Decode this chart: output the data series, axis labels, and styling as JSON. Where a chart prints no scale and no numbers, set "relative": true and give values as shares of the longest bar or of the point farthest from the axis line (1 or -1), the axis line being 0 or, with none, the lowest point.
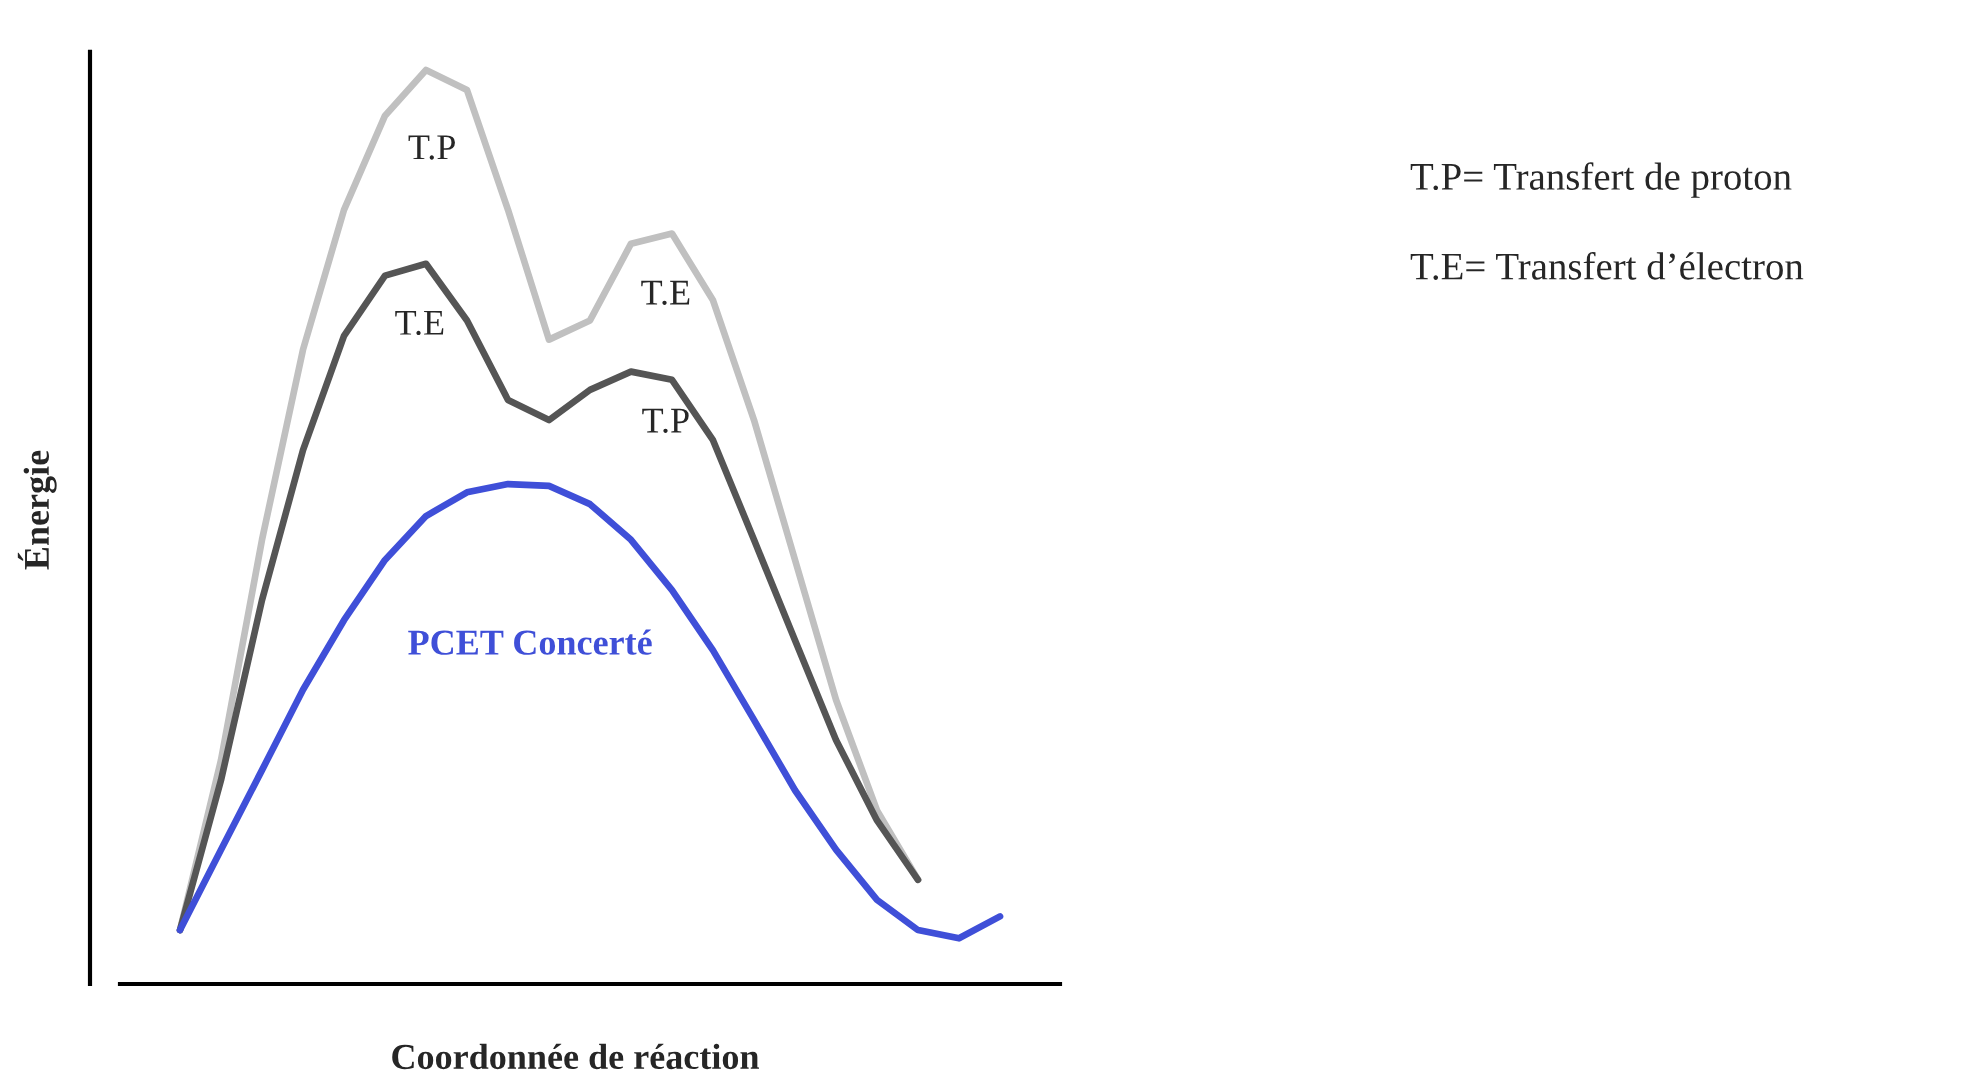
{
  "chart_data": {
    "type": "line",
    "relative": true,
    "xlabel": "Coordonnée de réaction",
    "ylabel": "Énergie",
    "categories": [
      null,
      null,
      null,
      null,
      null,
      null,
      null,
      null,
      null,
      null,
      null,
      null,
      null,
      null,
      null,
      null,
      null,
      null,
      null,
      null,
      null
    ],
    "series": [
      {
        "color": "#c0c0c0",
        "values": [
          0.059,
          0.245,
          0.486,
          0.694,
          0.847,
          0.95,
          1.0,
          0.978,
          0.847,
          0.705,
          0.726,
          0.81,
          0.821,
          0.748,
          0.617,
          0.464,
          0.311,
          0.19,
          0.114,
          null,
          null
        ]
      },
      {
        "color": "#555555",
        "values": [
          0.059,
          0.223,
          0.42,
          0.584,
          0.709,
          0.775,
          0.788,
          0.726,
          0.639,
          0.617,
          0.65,
          0.67,
          0.661,
          0.595,
          0.486,
          0.376,
          0.267,
          0.179,
          0.114,
          null,
          null
        ]
      },
      {
        "name": "PCET Concerté",
        "color": "#3f4fd8",
        "values": [
          0.059,
          0.147,
          0.234,
          0.322,
          0.398,
          0.464,
          0.512,
          0.538,
          0.547,
          0.545,
          0.525,
          0.486,
          0.431,
          0.365,
          0.289,
          0.212,
          0.147,
          0.092,
          0.059,
          0.05,
          0.074
        ]
      }
    ],
    "annotations": [
      "T.P",
      "T.E",
      "T.E",
      "T.P",
      "T.P= Transfert de proton",
      "T.E= Transfert d’électron"
    ],
    "legend": false,
    "grid": false
  }
}
